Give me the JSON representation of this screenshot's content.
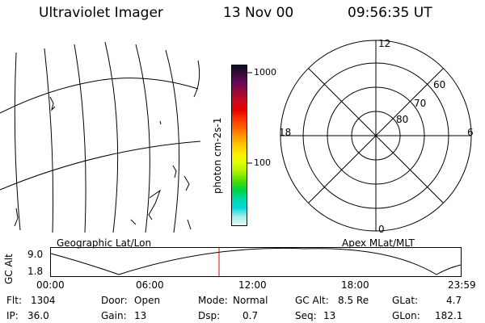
{
  "header": {
    "instrument": "Ultraviolet Imager",
    "date": "13 Nov 00",
    "time": "09:56:35 UT"
  },
  "colorbar": {
    "unit_label": "photon cm-2s-1",
    "ticks": [
      "1000",
      "100"
    ],
    "colors": [
      "#0a0a2a",
      "#3a0a3a",
      "#6a0a5a",
      "#9a0a3a",
      "#c80a1e",
      "#e60000",
      "#ff3000",
      "#ff6000",
      "#ff9a00",
      "#ffc800",
      "#ffee00",
      "#e0ff00",
      "#a8f000",
      "#50e000",
      "#00d040",
      "#00d8a0",
      "#00d8d8",
      "#a0ecec",
      "#e8f8f8"
    ]
  },
  "map": {
    "left_label": "Geographic Lat/Lon",
    "right_label": "Apex MLat/MLT"
  },
  "polar": {
    "mlt_labels": {
      "top": "12",
      "left": "18",
      "right": "6",
      "bottom": "0"
    },
    "lat_labels": [
      "60",
      "70",
      "80"
    ]
  },
  "altitude_plot": {
    "ylabel": "GC Alt",
    "ymax": "9.0",
    "ymin": "1.8",
    "x_ticks": [
      "00:00",
      "06:00",
      "12:00",
      "18:00",
      "23:59"
    ],
    "marker_color": "#e00000"
  },
  "info": {
    "flt": {
      "label": "Flt:",
      "value": "1304"
    },
    "ip": {
      "label": "IP:",
      "value": "36.0"
    },
    "door": {
      "label": "Door:",
      "value": "Open"
    },
    "gain": {
      "label": "Gain:",
      "value": "13"
    },
    "mode": {
      "label": "Mode:",
      "value": "Normal"
    },
    "dsp": {
      "label": "Dsp:",
      "value": "0.7"
    },
    "gcalt": {
      "label": "GC Alt:",
      "value": "8.5 Re"
    },
    "seq": {
      "label": "Seq:",
      "value": "13"
    },
    "glat": {
      "label": "GLat:",
      "value": "4.7"
    },
    "glon": {
      "label": "GLon:",
      "value": "182.1"
    }
  }
}
